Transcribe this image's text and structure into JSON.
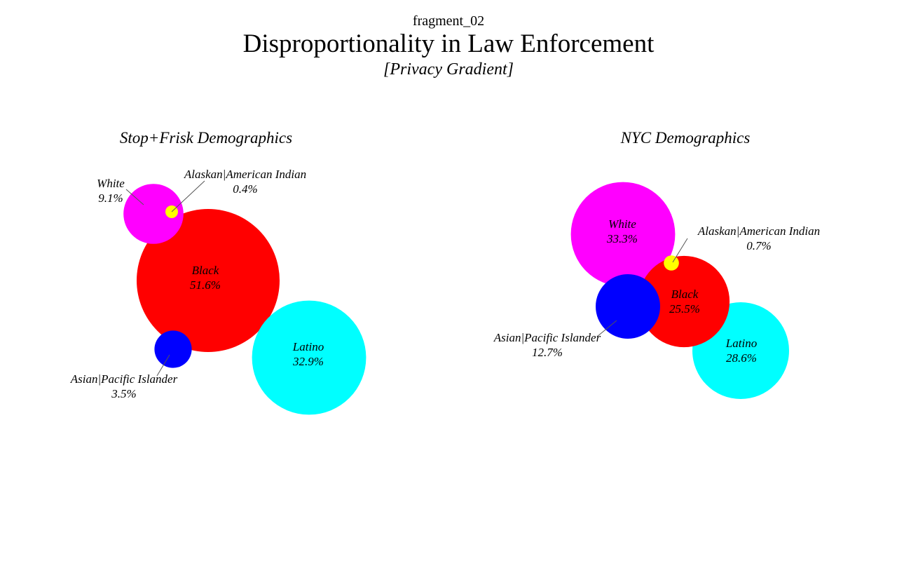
{
  "header": {
    "kicker": "fragment_02",
    "title": "Disproportionality in Law Enforcement",
    "subtitle": "[Privacy Gradient]"
  },
  "chart_data": [
    {
      "type": "bubble",
      "title": "Stop+Frisk Demographics",
      "value_unit": "%",
      "slices": [
        {
          "label": "Black",
          "value": 51.6,
          "color": "#ff0000"
        },
        {
          "label": "Latino",
          "value": 32.9,
          "color": "#00ffff"
        },
        {
          "label": "White",
          "value": 9.1,
          "color": "#ff00ff"
        },
        {
          "label": "Asian|Pacific Islander",
          "value": 3.5,
          "color": "#0000ff"
        },
        {
          "label": "Alaskan|American Indian",
          "value": 0.4,
          "color": "#ffff00"
        }
      ]
    },
    {
      "type": "bubble",
      "title": "NYC Demographics",
      "value_unit": "%",
      "slices": [
        {
          "label": "White",
          "value": 33.3,
          "color": "#ff00ff"
        },
        {
          "label": "Latino",
          "value": 28.6,
          "color": "#00ffff"
        },
        {
          "label": "Black",
          "value": 25.5,
          "color": "#ff0000"
        },
        {
          "label": "Asian|Pacific Islander",
          "value": 12.7,
          "color": "#0000ff"
        },
        {
          "label": "Alaskan|American Indian",
          "value": 0.7,
          "color": "#ffff00"
        }
      ]
    }
  ]
}
